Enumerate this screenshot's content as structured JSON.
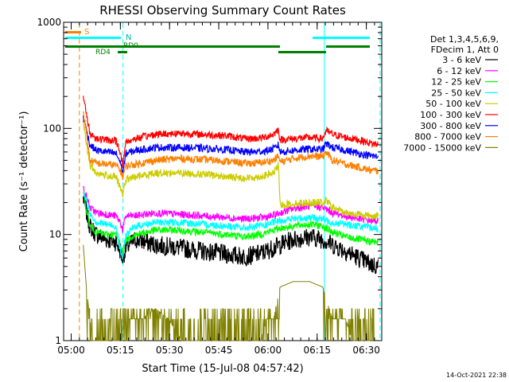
{
  "chart_data": {
    "type": "line",
    "title": "RHESSI Observing Summary Count Rates",
    "xlabel": "Start Time (15-Jul-08 04:57:42)",
    "ylabel": "Count Rate (s⁻¹ detector⁻¹)",
    "yscale": "log",
    "ylim": [
      1,
      1000
    ],
    "xlim_minutes": [
      0,
      97
    ],
    "x_tick_labels": [
      "05:00",
      "05:15",
      "05:30",
      "05:45",
      "06:00",
      "06:15",
      "06:30"
    ],
    "x_tick_minutes": [
      2.3,
      17.3,
      32.3,
      47.3,
      62.3,
      77.3,
      92.3
    ],
    "y_tick_labels": [
      "1",
      "10",
      "100",
      "1000"
    ],
    "y_tick_values": [
      1,
      10,
      100,
      1000
    ],
    "legend_header": [
      "Det 1,3,4,5,6,9,",
      "FDecim 1, Att 0"
    ],
    "legend_placement": "right",
    "footer_date": "14-Oct-2021 22:38",
    "annotations": {
      "saa_label": "S",
      "night_label": "N",
      "rd0_label": "RD0",
      "rd4_label": "RD4"
    },
    "vertical_markers": [
      {
        "minute": 4.8,
        "color": "#ff8000",
        "style": "dashed"
      },
      {
        "minute": 18.1,
        "color": "#00ffff",
        "style": "dashed"
      },
      {
        "minute": 79.5,
        "color": "#00ffff",
        "style": "solid"
      },
      {
        "minute": 96.5,
        "color": "#00ffff",
        "style": "dashed"
      }
    ],
    "series": [
      {
        "name": "3 - 6 keV",
        "color": "#000000",
        "x": [
          6,
          8,
          10,
          13,
          16,
          17.3,
          18,
          19,
          22,
          28,
          35,
          42,
          50,
          55,
          58,
          61,
          64,
          66,
          70,
          75,
          79,
          82,
          86,
          90,
          94,
          96
        ],
        "y": [
          22,
          12,
          10,
          9,
          8.5,
          7,
          6,
          7.5,
          9,
          8,
          7.5,
          7,
          6.5,
          6.2,
          6.4,
          6.8,
          7.5,
          8,
          9,
          9.5,
          9,
          8,
          7,
          6,
          5.2,
          5
        ]
      },
      {
        "name": "6 - 12 keV",
        "color": "#ff00ff",
        "x": [
          6,
          8,
          10,
          13,
          16,
          17.3,
          18,
          19,
          22,
          28,
          35,
          42,
          50,
          55,
          58,
          61,
          64,
          66,
          70,
          75,
          79,
          82,
          86,
          90,
          94,
          96
        ],
        "y": [
          28,
          18,
          16,
          15.5,
          15,
          13,
          11,
          15,
          15,
          16,
          15.5,
          15,
          14.5,
          14,
          14.2,
          14.5,
          15,
          16,
          17.5,
          18.5,
          18,
          16,
          15,
          14,
          13.5,
          13.5
        ]
      },
      {
        "name": "12 - 25 keV",
        "color": "#00ff00",
        "x": [
          6,
          8,
          10,
          13,
          16,
          17.3,
          18,
          19,
          22,
          28,
          35,
          42,
          50,
          55,
          58,
          61,
          64,
          66,
          70,
          75,
          79,
          82,
          86,
          90,
          94,
          96
        ],
        "y": [
          24,
          12,
          10.5,
          10,
          10,
          8,
          7,
          9,
          10,
          11,
          11,
          10.5,
          10,
          9.5,
          9.8,
          10.2,
          11,
          11.5,
          12,
          12.5,
          12,
          10.5,
          9.5,
          9,
          8.5,
          8.5
        ]
      },
      {
        "name": "25 - 50 keV",
        "color": "#00ffff",
        "x": [
          6,
          8,
          10,
          13,
          16,
          17.3,
          18,
          19,
          22,
          28,
          35,
          42,
          50,
          55,
          58,
          61,
          64,
          66,
          70,
          75,
          79,
          82,
          86,
          90,
          94,
          96
        ],
        "y": [
          26,
          16,
          13,
          12.5,
          12,
          7,
          6,
          10,
          12,
          13,
          13,
          12.5,
          12,
          11.5,
          11.8,
          12.2,
          13,
          13.5,
          14,
          14.5,
          14,
          13,
          12.5,
          12,
          11.5,
          11.5
        ]
      },
      {
        "name": "50 - 100 keV",
        "color": "#cccc00",
        "x": [
          6,
          8,
          10,
          13,
          16,
          17.3,
          18,
          19,
          22,
          28,
          35,
          42,
          50,
          55,
          58,
          61,
          64,
          65.5,
          66,
          70,
          75,
          79,
          80,
          82,
          86,
          90,
          94,
          96
        ],
        "y": [
          110,
          45,
          38,
          36,
          35,
          27,
          24,
          33,
          35,
          38,
          38,
          37,
          35,
          34,
          34.5,
          35.5,
          38,
          45,
          19,
          19.5,
          20,
          20,
          21,
          18,
          16,
          15.5,
          15,
          15
        ]
      },
      {
        "name": "100 - 300 keV",
        "color": "#ff0000",
        "x": [
          6,
          8,
          10,
          13,
          16,
          17.3,
          18,
          19,
          22,
          28,
          35,
          42,
          50,
          55,
          58,
          61,
          64,
          65.5,
          66,
          70,
          75,
          79,
          80,
          82,
          86,
          90,
          94,
          96
        ],
        "y": [
          200,
          90,
          80,
          78,
          76,
          60,
          45,
          75,
          80,
          88,
          90,
          88,
          85,
          80,
          80,
          82,
          88,
          98,
          78,
          80,
          82,
          80,
          95,
          88,
          82,
          78,
          72,
          70
        ]
      },
      {
        "name": "300 - 800 keV",
        "color": "#0000ff",
        "x": [
          6,
          8,
          10,
          13,
          16,
          17.3,
          18,
          19,
          22,
          28,
          35,
          42,
          50,
          55,
          58,
          61,
          64,
          65.5,
          66,
          70,
          75,
          79,
          80,
          82,
          86,
          90,
          94,
          96
        ],
        "y": [
          130,
          70,
          62,
          60,
          58,
          48,
          38,
          58,
          62,
          66,
          66,
          65,
          63,
          60,
          60,
          61,
          64,
          70,
          60,
          62,
          64,
          63,
          72,
          66,
          62,
          58,
          55,
          54
        ]
      },
      {
        "name": "800 - 7000 keV",
        "color": "#ff8000",
        "x": [
          6,
          8,
          10,
          13,
          16,
          17.3,
          18,
          19,
          22,
          28,
          35,
          42,
          50,
          55,
          58,
          61,
          64,
          65.5,
          66,
          70,
          75,
          79,
          80,
          82,
          86,
          90,
          94,
          96
        ],
        "y": [
          150,
          50,
          47,
          46,
          45,
          40,
          35,
          44,
          46,
          50,
          52,
          51,
          49,
          47,
          47,
          48,
          50,
          55,
          48,
          52,
          55,
          54,
          60,
          50,
          46,
          43,
          40,
          40
        ]
      },
      {
        "name": "7000 - 15000 keV",
        "color": "#808000",
        "x": [
          6,
          7,
          8,
          9,
          10,
          13,
          16,
          18,
          20,
          24,
          28,
          32,
          36,
          40,
          44,
          50,
          56,
          60,
          62,
          64,
          66,
          70,
          75,
          79,
          82,
          86,
          88,
          90,
          92,
          94,
          96
        ],
        "y": [
          8,
          3,
          1.6,
          1,
          1,
          1,
          1,
          1,
          1.6,
          1.6,
          2,
          1.6,
          1,
          1,
          1,
          1,
          1,
          1,
          1.6,
          1.6,
          3.2,
          3.6,
          3.6,
          3.2,
          1.6,
          1.6,
          1,
          1,
          1,
          1,
          1
        ]
      }
    ]
  }
}
